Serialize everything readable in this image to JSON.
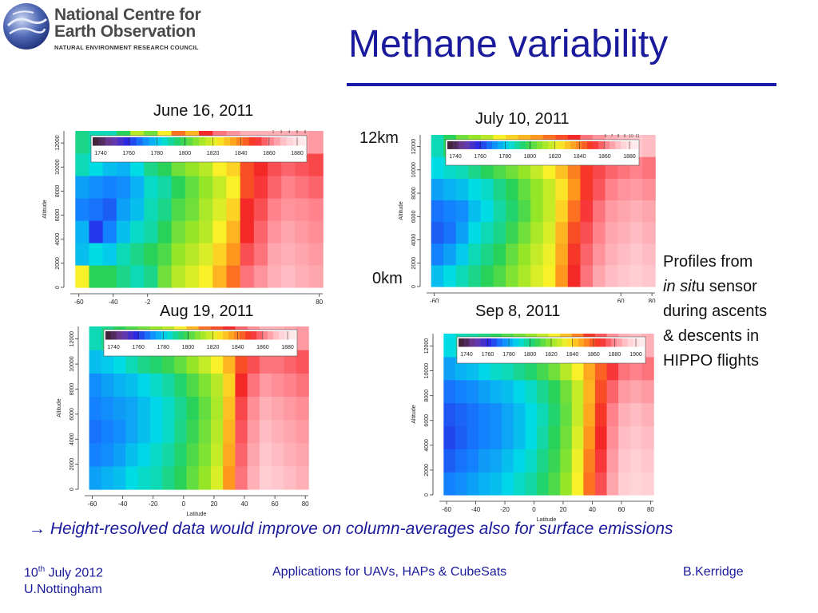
{
  "header": {
    "logo_line1": "National Centre for",
    "logo_line2": "Earth Observation",
    "logo_line3": "NATURAL ENVIRONMENT RESEARCH COUNCIL",
    "title": "Methane variability",
    "accent_color": "#1a1aa8"
  },
  "labels": {
    "top_altitude": "12km",
    "bottom_altitude": "0km"
  },
  "description": {
    "line1": "Profiles from",
    "line2_italic": "in sit",
    "line2_rest": "u  sensor",
    "line3": "during ascents",
    "line4": "& descents in",
    "line5": "HIPPO flights"
  },
  "conclusion": {
    "arrow": "→",
    "text": "Height-resolved data would improve on column-averages also for surface emissions"
  },
  "footer": {
    "date_prefix": "10",
    "date_sup": "th",
    "date_rest": " July 2012",
    "place": "U.Nottingham",
    "event": "Applications for UAVs, HAPs & CubeSats",
    "author": "B.Kerridge"
  },
  "chart_data": [
    {
      "type": "heatmap",
      "title": "June 16, 2011",
      "xlabel": "",
      "ylabel": "Altitude",
      "x_ticks": [
        "-60",
        "-40",
        "-2",
        "80"
      ],
      "y_ticks": [
        "0",
        "2000",
        "4000",
        "6000",
        "8000",
        "10000",
        "12000"
      ],
      "colorbar_ticks": [
        "1740",
        "1760",
        "1780",
        "1800",
        "1820",
        "1840",
        "1860",
        "1880"
      ],
      "colorbar_extra_ticks": [
        "1",
        "3",
        "4",
        "5",
        "6"
      ],
      "xlim": [
        -65,
        82
      ],
      "ylim": [
        0,
        13000
      ],
      "x_profiles": [
        -58,
        -50,
        -42,
        -34,
        -26,
        -18,
        -10,
        -2,
        6,
        14,
        22,
        30,
        38,
        46,
        54,
        62,
        70,
        78
      ],
      "profile_cols": [
        [
          1830,
          1780,
          1778,
          1770,
          1775,
          1790,
          1795
        ],
        [
          1800,
          1785,
          1760,
          1768,
          1772,
          1785,
          1790
        ],
        [
          1800,
          1782,
          1770,
          1765,
          1770,
          1780,
          1790
        ],
        [
          1795,
          1790,
          1780,
          1775,
          1772,
          1778,
          1800
        ],
        [
          1790,
          1795,
          1788,
          1780,
          1778,
          1785,
          1820
        ],
        [
          1795,
          1800,
          1792,
          1790,
          1788,
          1795,
          1810
        ],
        [
          1810,
          1805,
          1800,
          1795,
          1792,
          1800,
          1830
        ],
        [
          1820,
          1815,
          1810,
          1805,
          1800,
          1810,
          1850
        ],
        [
          1825,
          1820,
          1815,
          1810,
          1808,
          1815,
          1840
        ],
        [
          1830,
          1825,
          1820,
          1818,
          1815,
          1820,
          1860
        ],
        [
          1840,
          1835,
          1830,
          1825,
          1822,
          1830,
          1870
        ],
        [
          1850,
          1845,
          1840,
          1835,
          1830,
          1835,
          1875
        ],
        [
          1870,
          1865,
          1860,
          1860,
          1855,
          1855,
          1880
        ],
        [
          1875,
          1870,
          1868,
          1865,
          1862,
          1860,
          1880
        ],
        [
          1880,
          1878,
          1875,
          1872,
          1868,
          1865,
          1880
        ],
        [
          1882,
          1880,
          1878,
          1875,
          1872,
          1868,
          1880
        ],
        [
          1880,
          1878,
          1876,
          1874,
          1870,
          1866,
          1878
        ],
        [
          1878,
          1876,
          1874,
          1872,
          1868,
          1864,
          1876
        ]
      ]
    },
    {
      "type": "heatmap",
      "title": "July 10, 2011",
      "xlabel": "",
      "ylabel": "Altitude",
      "x_ticks": [
        "-60",
        "60",
        "80"
      ],
      "y_ticks": [
        "0",
        "2000",
        "4000",
        "6000",
        "8000",
        "10000",
        "12000"
      ],
      "colorbar_ticks": [
        "1740",
        "1760",
        "1780",
        "1800",
        "1820",
        "1840",
        "1860",
        "1880"
      ],
      "colorbar_extra_ticks": [
        "6",
        "7",
        "8",
        "9",
        "10",
        "11"
      ],
      "xlim": [
        -65,
        82
      ],
      "ylim": [
        0,
        13000
      ],
      "x_profiles": [
        -58,
        -50,
        -42,
        -34,
        -26,
        -18,
        -10,
        -2,
        6,
        14,
        22,
        30,
        38,
        46,
        54,
        62,
        70,
        78
      ],
      "profile_cols": [
        [
          1780,
          1770,
          1765,
          1768,
          1775,
          1785,
          1790
        ],
        [
          1785,
          1775,
          1768,
          1770,
          1778,
          1788,
          1800
        ],
        [
          1790,
          1782,
          1775,
          1772,
          1780,
          1790,
          1810
        ],
        [
          1795,
          1790,
          1785,
          1780,
          1785,
          1795,
          1815
        ],
        [
          1800,
          1795,
          1790,
          1785,
          1788,
          1800,
          1820
        ],
        [
          1805,
          1800,
          1795,
          1792,
          1795,
          1805,
          1830
        ],
        [
          1812,
          1808,
          1802,
          1798,
          1800,
          1810,
          1835
        ],
        [
          1818,
          1815,
          1810,
          1805,
          1808,
          1815,
          1840
        ],
        [
          1825,
          1822,
          1818,
          1815,
          1815,
          1822,
          1845
        ],
        [
          1830,
          1828,
          1825,
          1822,
          1822,
          1830,
          1850
        ],
        [
          1845,
          1842,
          1840,
          1835,
          1832,
          1838,
          1855
        ],
        [
          1860,
          1858,
          1855,
          1850,
          1845,
          1848,
          1860
        ],
        [
          1870,
          1868,
          1865,
          1862,
          1858,
          1858,
          1870
        ],
        [
          1878,
          1875,
          1872,
          1870,
          1866,
          1864,
          1875
        ],
        [
          1882,
          1880,
          1878,
          1876,
          1872,
          1868,
          1880
        ],
        [
          1884,
          1882,
          1880,
          1878,
          1875,
          1870,
          1882
        ],
        [
          1885,
          1884,
          1882,
          1880,
          1876,
          1872,
          1884
        ],
        [
          1884,
          1882,
          1880,
          1878,
          1874,
          1870,
          1882
        ]
      ]
    },
    {
      "type": "heatmap",
      "title": "Aug 19, 2011",
      "xlabel": "Latitude",
      "ylabel": "Altitude",
      "x_ticks": [
        "-60",
        "-40",
        "-20",
        "0",
        "20",
        "40",
        "60",
        "80"
      ],
      "y_ticks": [
        "0",
        "2000",
        "4000",
        "6000",
        "8000",
        "10000",
        "12000"
      ],
      "colorbar_ticks": [
        "1740",
        "1760",
        "1780",
        "1800",
        "1820",
        "1840",
        "1860",
        "1880"
      ],
      "xlim": [
        -65,
        82
      ],
      "ylim": [
        0,
        13000
      ],
      "x_profiles": [
        -58,
        -50,
        -42,
        -34,
        -26,
        -18,
        -10,
        -2,
        6,
        14,
        22,
        30,
        38,
        46,
        54,
        62,
        70,
        78
      ],
      "profile_cols": [
        [
          1775,
          1770,
          1768,
          1770,
          1772,
          1780,
          1790
        ],
        [
          1778,
          1772,
          1770,
          1772,
          1775,
          1782,
          1795
        ],
        [
          1780,
          1775,
          1772,
          1774,
          1778,
          1785,
          1800
        ],
        [
          1785,
          1780,
          1776,
          1776,
          1780,
          1790,
          1805
        ],
        [
          1788,
          1784,
          1780,
          1780,
          1784,
          1795,
          1810
        ],
        [
          1790,
          1788,
          1784,
          1784,
          1788,
          1798,
          1815
        ],
        [
          1795,
          1792,
          1788,
          1788,
          1792,
          1802,
          1820
        ],
        [
          1800,
          1798,
          1795,
          1794,
          1798,
          1808,
          1830
        ],
        [
          1808,
          1805,
          1802,
          1800,
          1805,
          1815,
          1840
        ],
        [
          1815,
          1812,
          1810,
          1808,
          1812,
          1822,
          1850
        ],
        [
          1825,
          1822,
          1820,
          1818,
          1820,
          1830,
          1855
        ],
        [
          1845,
          1842,
          1840,
          1838,
          1835,
          1840,
          1860
        ],
        [
          1870,
          1868,
          1866,
          1864,
          1860,
          1855,
          1868
        ],
        [
          1880,
          1878,
          1876,
          1874,
          1870,
          1865,
          1874
        ],
        [
          1885,
          1884,
          1882,
          1880,
          1876,
          1870,
          1880
        ],
        [
          1884,
          1882,
          1880,
          1878,
          1874,
          1870,
          1880
        ],
        [
          1882,
          1880,
          1878,
          1876,
          1872,
          1868,
          1878
        ],
        [
          1880,
          1878,
          1876,
          1874,
          1870,
          1866,
          1876
        ]
      ]
    },
    {
      "type": "heatmap",
      "title": "Sep 8, 2011",
      "xlabel": "Latitude",
      "ylabel": "Altitude",
      "x_ticks": [
        "-60",
        "-40",
        "-20",
        "0",
        "20",
        "40",
        "60",
        "80"
      ],
      "y_ticks": [
        "0",
        "2000",
        "4000",
        "6000",
        "8000",
        "10000",
        "12000"
      ],
      "colorbar_ticks": [
        "1740",
        "1760",
        "1780",
        "1800",
        "1820",
        "1840",
        "1860",
        "1880",
        "1900"
      ],
      "xlim": [
        -65,
        82
      ],
      "ylim": [
        0,
        13000
      ],
      "x_profiles": [
        -58,
        -50,
        -42,
        -34,
        -26,
        -18,
        -10,
        -2,
        6,
        14,
        22,
        30,
        38,
        46,
        54,
        62,
        70,
        78
      ],
      "profile_cols": [
        [
          1770,
          1765,
          1762,
          1764,
          1768,
          1775,
          1785
        ],
        [
          1772,
          1768,
          1765,
          1766,
          1770,
          1778,
          1790
        ],
        [
          1775,
          1770,
          1768,
          1768,
          1772,
          1780,
          1792
        ],
        [
          1778,
          1774,
          1770,
          1770,
          1775,
          1784,
          1796
        ],
        [
          1780,
          1776,
          1772,
          1772,
          1778,
          1788,
          1800
        ],
        [
          1784,
          1780,
          1776,
          1776,
          1780,
          1790,
          1805
        ],
        [
          1788,
          1784,
          1780,
          1780,
          1784,
          1794,
          1810
        ],
        [
          1792,
          1788,
          1785,
          1785,
          1788,
          1798,
          1815
        ],
        [
          1798,
          1795,
          1792,
          1790,
          1794,
          1804,
          1822
        ],
        [
          1805,
          1802,
          1800,
          1798,
          1800,
          1810,
          1830
        ],
        [
          1815,
          1812,
          1810,
          1808,
          1810,
          1820,
          1838
        ],
        [
          1830,
          1828,
          1825,
          1822,
          1822,
          1830,
          1848
        ],
        [
          1850,
          1848,
          1845,
          1842,
          1840,
          1842,
          1858
        ],
        [
          1865,
          1862,
          1860,
          1858,
          1855,
          1852,
          1866
        ],
        [
          1878,
          1876,
          1874,
          1872,
          1868,
          1862,
          1874
        ],
        [
          1885,
          1884,
          1882,
          1880,
          1876,
          1870,
          1880
        ],
        [
          1888,
          1886,
          1884,
          1882,
          1878,
          1872,
          1882
        ],
        [
          1886,
          1884,
          1882,
          1880,
          1876,
          1870,
          1880
        ]
      ]
    }
  ]
}
